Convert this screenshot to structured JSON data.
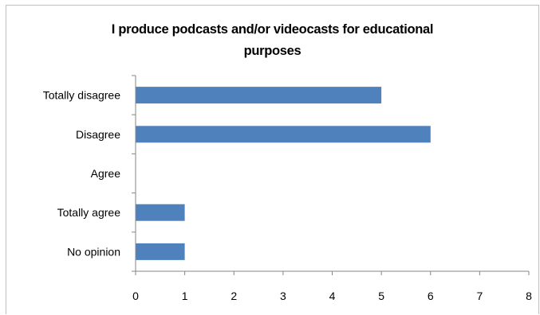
{
  "chart_data": {
    "type": "bar",
    "orientation": "horizontal",
    "title_lines": [
      "I produce podcasts and/or videocasts for educational",
      "purposes"
    ],
    "categories": [
      "Totally disagree",
      "Disagree",
      "Agree",
      "Totally agree",
      "No opinion"
    ],
    "values": [
      5,
      6,
      0,
      1,
      1
    ],
    "xlim": [
      0,
      8
    ],
    "xticks": [
      "0",
      "1",
      "2",
      "3",
      "4",
      "5",
      "6",
      "7",
      "8"
    ],
    "grid": false,
    "legend": "none",
    "bar_color": "#4f81bd",
    "axis_color": "#868686"
  }
}
